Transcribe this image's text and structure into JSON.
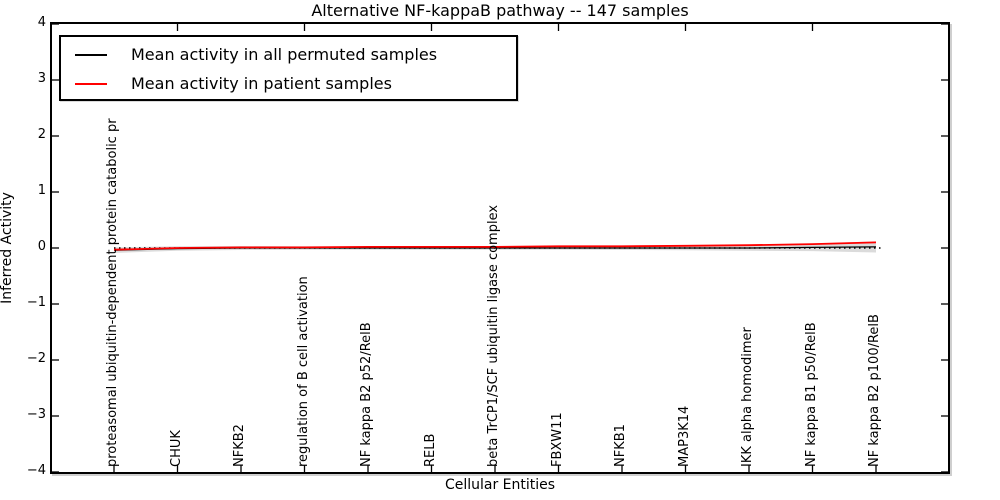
{
  "title": "Alternative NF-kappaB pathway -- 147 samples",
  "axes": {
    "ylabel": "Inferred Activity",
    "xlabel": "Cellular Entities",
    "ytick_labels": [
      "4",
      "3",
      "2",
      "1",
      "0",
      "−1",
      "−2",
      "−3",
      "−4"
    ]
  },
  "legend": {
    "items": [
      {
        "label": "Mean activity in all permuted samples",
        "color": "#000000"
      },
      {
        "label": "Mean activity in patient samples",
        "color": "#ff0000"
      }
    ]
  },
  "chart_data": {
    "type": "line",
    "title": "Alternative NF-kappaB pathway -- 147 samples",
    "xlabel": "Cellular Entities",
    "ylabel": "Inferred Activity",
    "ylim": [
      -4,
      4
    ],
    "yticks": [
      4,
      3,
      2,
      1,
      0,
      -1,
      -2,
      -3,
      -4
    ],
    "grid": false,
    "legend_position": "upper left",
    "zero_line_style": "dotted",
    "categories": [
      "proteasomal ubiquitin-dependent protein catabolic pr",
      "CHUK",
      "NFKB2",
      "regulation of B cell activation",
      "NF kappa B2 p52/RelB",
      "RELB",
      "beta TrCP1/SCF ubiquitin ligase complex",
      "FBXW11",
      "NFKB1",
      "MAP3K14",
      "IKK alpha homodimer",
      "NF kappa B1 p50/RelB",
      "NF kappa B2 p100/RelB"
    ],
    "series": [
      {
        "name": "Mean activity in all permuted samples",
        "color": "#000000",
        "values": [
          -0.04,
          -0.01,
          0.0,
          0.0,
          0.0,
          0.0,
          0.0,
          0.0,
          0.0,
          0.0,
          0.0,
          0.01,
          0.02
        ]
      },
      {
        "name": "Mean activity in patient samples",
        "color": "#ff0000",
        "values": [
          -0.03,
          0.0,
          0.01,
          0.01,
          0.02,
          0.02,
          0.02,
          0.03,
          0.03,
          0.04,
          0.05,
          0.07,
          0.1
        ]
      }
    ],
    "band": {
      "name": "permuted-samples spread band",
      "color": "#999999",
      "opacity": 0.35,
      "half_widths": [
        0.05,
        0.04,
        0.035,
        0.03,
        0.03,
        0.03,
        0.03,
        0.03,
        0.035,
        0.04,
        0.05,
        0.065,
        0.1
      ]
    }
  }
}
